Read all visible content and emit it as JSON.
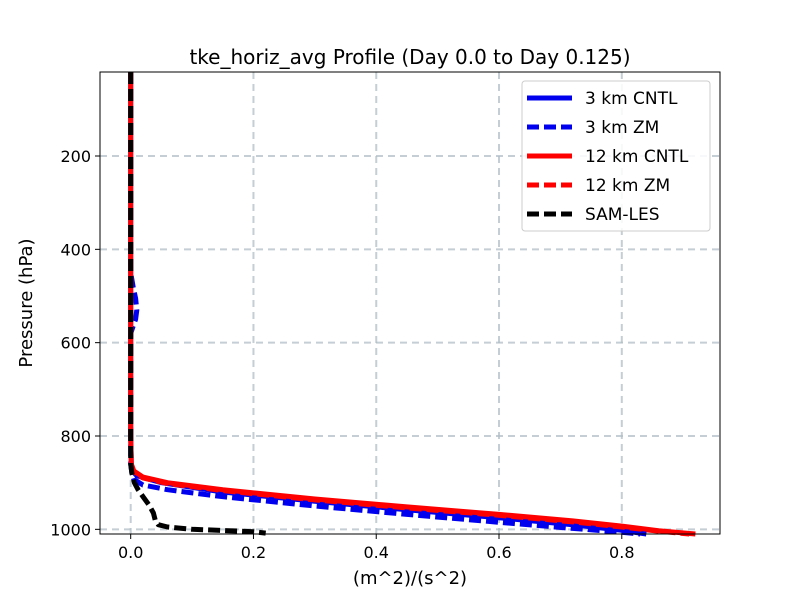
{
  "chart_data": {
    "type": "line",
    "title": "tke_horiz_avg Profile (Day 0.0 to Day 0.125)",
    "xlabel": "(m^2)/(s^2)",
    "ylabel": "Pressure (hPa)",
    "xlim": [
      -0.05,
      0.96
    ],
    "ylim": [
      1010,
      20
    ],
    "y_inverted": true,
    "xticks": [
      0.0,
      0.2,
      0.4,
      0.6,
      0.8
    ],
    "xtick_labels": [
      "0.0",
      "0.2",
      "0.4",
      "0.6",
      "0.8"
    ],
    "yticks": [
      200,
      400,
      600,
      800,
      1000
    ],
    "ytick_labels": [
      "200",
      "400",
      "600",
      "800",
      "1000"
    ],
    "grid": true,
    "legend_position": "top-right",
    "series": [
      {
        "name": "3 km CNTL",
        "color": "#0000ee",
        "style": "solid",
        "x": [
          0.0,
          0.0,
          0.0,
          0.0,
          0.0,
          0.0,
          0.0,
          0.0,
          0.0,
          0.0,
          0.0,
          0.001,
          0.003,
          0.01,
          0.05,
          0.15,
          0.3,
          0.45,
          0.6,
          0.72,
          0.8,
          0.84
        ],
        "y": [
          20,
          100,
          200,
          300,
          400,
          460,
          500,
          540,
          600,
          700,
          800,
          860,
          875,
          885,
          900,
          920,
          940,
          958,
          975,
          990,
          1002,
          1010
        ]
      },
      {
        "name": "3 km ZM",
        "color": "#0000ee",
        "style": "dashed",
        "x": [
          0.0,
          0.0,
          0.0,
          0.0,
          0.0,
          0.0,
          0.004,
          0.008,
          0.01,
          0.008,
          0.004,
          0.0,
          0.0,
          0.0,
          0.002,
          0.005,
          0.02,
          0.06,
          0.15,
          0.3,
          0.45,
          0.6,
          0.72,
          0.79,
          0.83
        ],
        "y": [
          20,
          100,
          200,
          300,
          400,
          450,
          480,
          505,
          530,
          550,
          565,
          580,
          700,
          860,
          880,
          893,
          905,
          915,
          930,
          950,
          968,
          985,
          998,
          1005,
          1010
        ]
      },
      {
        "name": "12 km CNTL",
        "color": "#ff0000",
        "style": "solid",
        "x": [
          0.0,
          0.0,
          0.0,
          0.0,
          0.0,
          0.001,
          0.005,
          0.02,
          0.06,
          0.15,
          0.3,
          0.45,
          0.6,
          0.72,
          0.8,
          0.86,
          0.92
        ],
        "y": [
          20,
          200,
          400,
          600,
          800,
          860,
          875,
          888,
          900,
          915,
          935,
          952,
          968,
          982,
          993,
          1003,
          1010
        ]
      },
      {
        "name": "12 km ZM",
        "color": "#ff0000",
        "style": "dashed",
        "x": [
          0.0,
          0.0,
          0.0,
          0.0,
          0.0,
          0.001,
          0.005,
          0.02,
          0.06,
          0.15,
          0.3,
          0.45,
          0.6,
          0.72,
          0.8,
          0.86,
          0.91
        ],
        "y": [
          20,
          200,
          400,
          600,
          800,
          862,
          877,
          890,
          902,
          917,
          937,
          954,
          970,
          984,
          995,
          1004,
          1010
        ]
      },
      {
        "name": "SAM-LES",
        "color": "#000000",
        "style": "dashed",
        "x": [
          0.0,
          0.0,
          0.0,
          0.0,
          0.0,
          0.0,
          0.002,
          0.006,
          0.012,
          0.02,
          0.03,
          0.037,
          0.04,
          0.045,
          0.06,
          0.1,
          0.2,
          0.22
        ],
        "y": [
          20,
          200,
          400,
          600,
          800,
          860,
          880,
          900,
          915,
          930,
          948,
          965,
          980,
          990,
          995,
          1000,
          1005,
          1008
        ]
      }
    ]
  }
}
